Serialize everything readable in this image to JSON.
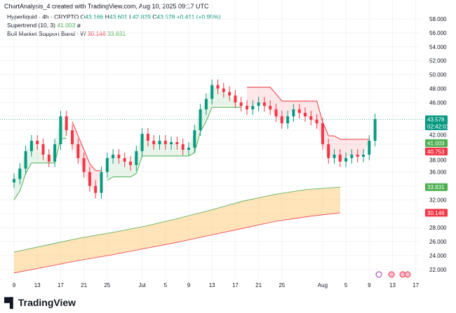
{
  "header": {
    "title": "ChartAnalysis_4 created with TradingView.com, Aug 10, 2025 09:17 UTC"
  },
  "legend": {
    "symbol": "Hyperliquid · 4h · CRYPTO",
    "o_label": "O",
    "o": "43.166",
    "h_label": "H",
    "h": "43.601",
    "l_label": "L",
    "l": "42.829",
    "c_label": "C",
    "c": "43.578",
    "change": "+0.411 (+0.95%)",
    "supertrend": "Supertrend (10, 3)",
    "supertrend_value": "41.003",
    "supertrend_sym": "ø",
    "band": "Bull Market Support Band · W",
    "band_low": "30.146",
    "band_high": "33.831"
  },
  "brand": {
    "name": "TradingView"
  },
  "colors": {
    "up": "#089981",
    "down": "#f23645",
    "st_up": "#4caf50",
    "band": "#ffcc80"
  },
  "chart_data": {
    "type": "candlestick",
    "ylim": [
      22,
      58
    ],
    "yticks": [
      22,
      24,
      26,
      28,
      32,
      36,
      38,
      42,
      46,
      48,
      50,
      52,
      54,
      56,
      58
    ],
    "xlabels": [
      {
        "d": 0,
        "t": "9"
      },
      {
        "d": 4,
        "t": "13"
      },
      {
        "d": 8,
        "t": "17"
      },
      {
        "d": 12,
        "t": "21"
      },
      {
        "d": 16,
        "t": "25"
      },
      {
        "d": 22,
        "t": "Jul"
      },
      {
        "d": 26,
        "t": "5"
      },
      {
        "d": 30,
        "t": "9"
      },
      {
        "d": 34,
        "t": "13"
      },
      {
        "d": 38,
        "t": "17"
      },
      {
        "d": 42,
        "t": "21"
      },
      {
        "d": 46,
        "t": "25"
      },
      {
        "d": 53,
        "t": "Aug"
      },
      {
        "d": 57,
        "t": "5"
      },
      {
        "d": 61,
        "t": "9"
      },
      {
        "d": 65,
        "t": "13"
      },
      {
        "d": 69,
        "t": "17"
      }
    ],
    "start": "Jun 9",
    "closes": [
      35,
      36.5,
      39,
      40.5,
      40,
      38.5,
      37.5,
      40,
      44,
      42,
      40,
      38,
      36,
      34,
      33,
      36,
      38,
      38.5,
      38,
      37.5,
      37,
      39,
      41.5,
      40.5,
      40,
      40.5,
      40,
      40.3,
      40,
      39.2,
      39.5,
      42,
      45,
      46.5,
      48.5,
      48,
      47.5,
      47,
      46,
      45.5,
      45,
      45.5,
      46,
      45.5,
      45,
      44,
      43,
      44,
      45,
      44.5,
      44,
      43.5,
      43,
      40,
      38,
      38.5,
      37.5,
      38,
      38.5,
      38.2,
      38.5,
      40.5,
      43.6
    ],
    "band_upper": [
      24.5,
      25.5,
      26.5,
      27.3,
      28.2,
      29.3,
      30.5,
      31.8,
      32.8,
      33.5,
      33.831
    ],
    "band_lower": [
      21.5,
      22.4,
      23.3,
      24.1,
      25,
      25.9,
      26.9,
      27.9,
      28.9,
      29.6,
      30.146
    ],
    "price_tags": [
      {
        "v": 43.578,
        "t": "43.578",
        "t2": "02:42:01",
        "c": "#089981"
      },
      {
        "v": 41.003,
        "t": "41.003",
        "c": "#4caf50"
      },
      {
        "v": 40.753,
        "t": "40.753",
        "c": "#f23645"
      },
      {
        "v": 33.831,
        "t": "33.831",
        "c": "#4caf50"
      },
      {
        "v": 30.146,
        "t": "30.146",
        "c": "#f23645"
      }
    ]
  }
}
